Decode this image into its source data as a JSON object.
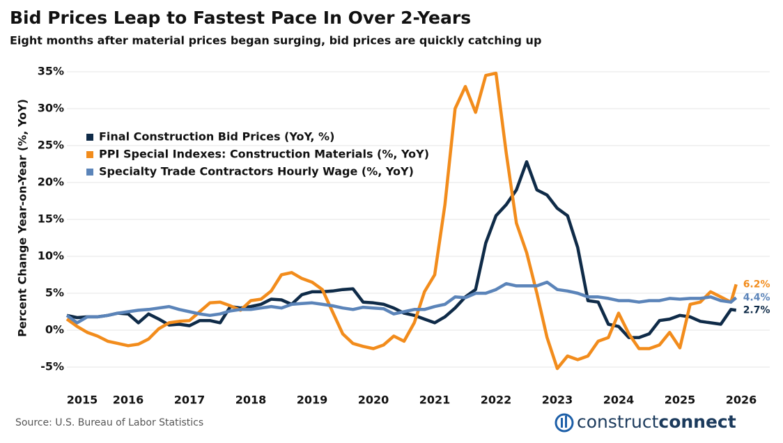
{
  "chart_data": {
    "type": "line",
    "title": "Bid Prices Leap to Fastest Pace In Over 2-Years",
    "subtitle": "Eight months after material prices began surging, bid prices are quickly catching up",
    "y_label": "Percent Change Year-on-Year (%, YoY)",
    "source": "Source: U.S. Bureau of Labor Statistics",
    "logo": [
      "construct",
      "connect"
    ],
    "x": [
      2015,
      2015.167,
      2015.333,
      2015.5,
      2015.667,
      2015.833,
      2016,
      2016.167,
      2016.333,
      2016.5,
      2016.667,
      2016.833,
      2017,
      2017.167,
      2017.333,
      2017.5,
      2017.667,
      2017.833,
      2018,
      2018.167,
      2018.333,
      2018.5,
      2018.667,
      2018.833,
      2019,
      2019.167,
      2019.333,
      2019.5,
      2019.667,
      2019.833,
      2020,
      2020.167,
      2020.333,
      2020.5,
      2020.667,
      2020.833,
      2021,
      2021.167,
      2021.333,
      2021.5,
      2021.667,
      2021.833,
      2022,
      2022.167,
      2022.333,
      2022.5,
      2022.667,
      2022.833,
      2023,
      2023.167,
      2023.333,
      2023.5,
      2023.667,
      2023.833,
      2024,
      2024.167,
      2024.333,
      2024.5,
      2024.667,
      2024.833,
      2025,
      2025.167,
      2025.333,
      2025.5,
      2025.667,
      2025.833,
      2025.917
    ],
    "series": [
      {
        "name": "Final Construction Bid Prices (YoY, %)",
        "color": "#0f2b48",
        "values": [
          2.0,
          1.7,
          1.8,
          1.8,
          2.0,
          2.3,
          2.2,
          1.0,
          2.2,
          1.5,
          0.7,
          0.8,
          0.6,
          1.3,
          1.3,
          1.0,
          3.2,
          3.0,
          3.2,
          3.5,
          4.2,
          4.1,
          3.5,
          4.8,
          5.2,
          5.2,
          5.3,
          5.5,
          5.6,
          3.8,
          3.7,
          3.5,
          3.0,
          2.3,
          2.0,
          1.5,
          1.0,
          1.8,
          3.0,
          4.5,
          5.5,
          11.8,
          15.5,
          17,
          19,
          22.8,
          19,
          18.3,
          16.5,
          15.5,
          11.2,
          4.0,
          3.8,
          0.8,
          0.5,
          -1.0,
          -1.0,
          -0.5,
          1.3,
          1.5,
          2.0,
          1.8,
          1.2,
          1.0,
          0.8,
          2.8,
          2.7
        ],
        "value_labels": [
          null,
          null,
          null,
          null,
          null,
          null,
          null,
          null,
          null,
          null,
          null,
          null,
          null,
          null,
          null,
          null,
          null,
          null,
          null,
          null,
          null,
          null,
          null,
          null,
          null,
          null,
          null,
          null,
          null,
          null,
          null,
          null,
          null,
          null,
          null,
          null,
          null,
          null,
          null,
          null,
          null,
          null,
          null,
          null,
          null,
          null,
          null,
          null,
          null,
          null,
          null,
          null,
          null,
          null,
          null,
          null,
          null,
          null,
          null,
          null,
          null,
          null,
          null,
          null,
          null,
          null,
          "2.7%"
        ]
      },
      {
        "name": "PPI Special Indexes: Construction Materials (%, YoY)",
        "color": "#f28c1c",
        "values": [
          1.5,
          0.5,
          -0.3,
          -0.8,
          -1.5,
          -1.8,
          -2.1,
          -1.9,
          -1.2,
          0.2,
          1.0,
          1.2,
          1.3,
          2.5,
          3.7,
          3.8,
          3.3,
          2.7,
          4.0,
          4.2,
          5.3,
          7.5,
          7.8,
          7.0,
          6.5,
          5.5,
          2.5,
          -0.5,
          -1.8,
          -2.2,
          -2.5,
          -2.0,
          -0.8,
          -1.5,
          1.0,
          5.2,
          7.5,
          17,
          30,
          33,
          29.5,
          34.5,
          34.8,
          24,
          14.5,
          10.5,
          5,
          -1,
          -5.2,
          -3.5,
          -4,
          -3.5,
          -1.5,
          -1,
          2.3,
          -0.5,
          -2.5,
          -2.5,
          -2,
          -0.3,
          -2.4,
          3.5,
          3.8,
          5.2,
          4.5,
          3.8,
          6.2
        ],
        "value_labels": [
          null,
          null,
          null,
          null,
          null,
          null,
          null,
          null,
          null,
          null,
          null,
          null,
          null,
          null,
          null,
          null,
          null,
          null,
          null,
          null,
          null,
          null,
          null,
          null,
          null,
          null,
          null,
          null,
          null,
          null,
          null,
          null,
          null,
          null,
          null,
          null,
          null,
          null,
          null,
          null,
          null,
          null,
          null,
          null,
          null,
          null,
          null,
          null,
          null,
          null,
          null,
          null,
          null,
          null,
          null,
          null,
          null,
          null,
          null,
          null,
          null,
          null,
          null,
          null,
          null,
          null,
          "6.2%"
        ]
      },
      {
        "name": "Specialty Trade Contractors Hourly Wage (%, YoY)",
        "color": "#5b84b9",
        "values": [
          2.0,
          1.0,
          1.8,
          1.8,
          2.0,
          2.3,
          2.5,
          2.7,
          2.8,
          3.0,
          3.2,
          2.8,
          2.5,
          2.2,
          2.0,
          2.2,
          2.6,
          2.8,
          2.8,
          3.0,
          3.2,
          3.0,
          3.5,
          3.6,
          3.7,
          3.5,
          3.3,
          3.0,
          2.8,
          3.1,
          3.0,
          2.9,
          2.2,
          2.5,
          2.8,
          2.8,
          3.2,
          3.5,
          4.5,
          4.4,
          5.0,
          5.0,
          5.5,
          6.3,
          6.0,
          6.0,
          6.0,
          6.5,
          5.5,
          5.3,
          5.0,
          4.5,
          4.5,
          4.3,
          4.0,
          4.0,
          3.8,
          4.0,
          4.0,
          4.3,
          4.2,
          4.3,
          4.3,
          4.5,
          4.0,
          3.8,
          4.4
        ],
        "value_labels": [
          null,
          null,
          null,
          null,
          null,
          null,
          null,
          null,
          null,
          null,
          null,
          null,
          null,
          null,
          null,
          null,
          null,
          null,
          null,
          null,
          null,
          null,
          null,
          null,
          null,
          null,
          null,
          null,
          null,
          null,
          null,
          null,
          null,
          null,
          null,
          null,
          null,
          null,
          null,
          null,
          null,
          null,
          null,
          null,
          null,
          null,
          null,
          null,
          null,
          null,
          null,
          null,
          null,
          null,
          null,
          null,
          null,
          null,
          null,
          null,
          null,
          null,
          null,
          null,
          null,
          null,
          "4.4%"
        ]
      }
    ],
    "xlim": [
      2015,
      2026
    ],
    "xticks": [
      2015,
      2016,
      2017,
      2018,
      2019,
      2020,
      2021,
      2022,
      2023,
      2024,
      2025,
      2026
    ],
    "ylim": [
      -7,
      36
    ],
    "yticks": [
      {
        "value": -5,
        "label": "-5%"
      },
      {
        "value": 0,
        "label": "0%"
      },
      {
        "value": 5,
        "label": "5%"
      },
      {
        "value": 10,
        "label": "10%"
      },
      {
        "value": 15,
        "label": "15%"
      },
      {
        "value": 20,
        "label": "20%"
      },
      {
        "value": 25,
        "label": "25%"
      },
      {
        "value": 30,
        "label": "30%"
      },
      {
        "value": 35,
        "label": "35%"
      }
    ],
    "grid": true,
    "legend": "upper left"
  }
}
